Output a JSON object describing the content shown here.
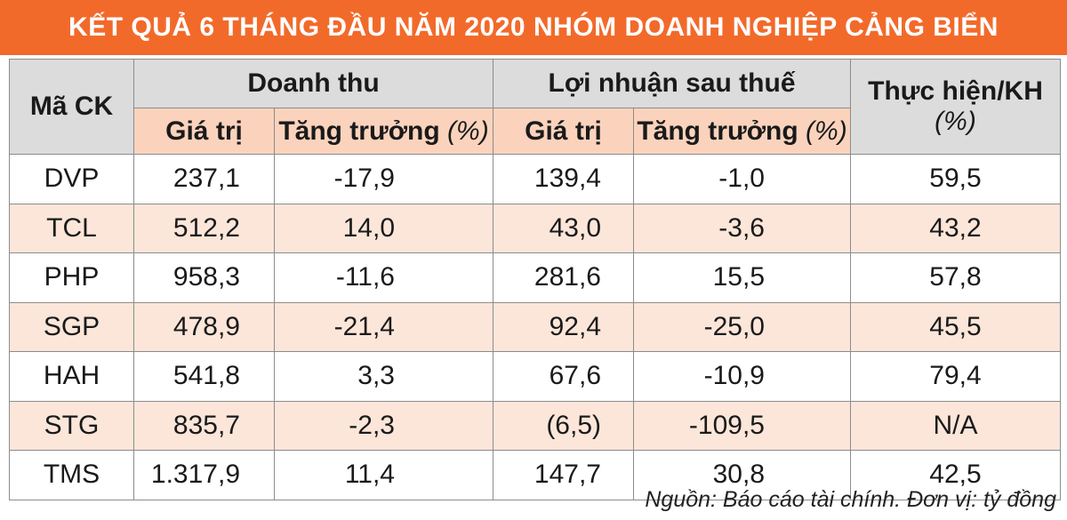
{
  "title": "KẾT QUẢ 6 THÁNG ĐẦU NĂM 2020 NHÓM DOANH NGHIỆP CẢNG BIỂN",
  "headers": {
    "code": "Mã CK",
    "revenue_group": "Doanh thu",
    "profit_group": "Lợi nhuận sau thuế",
    "plan": "Thực hiện/KH",
    "plan_unit": "(%)",
    "value": "Giá trị",
    "growth": "Tăng trưởng",
    "growth_unit": "(%)"
  },
  "colors": {
    "title_bg": "#f26a2a",
    "header_gray": "#dcdcdc",
    "header_peach": "#fbd3bd",
    "alt_row": "#fce6da",
    "border": "#8c8c8c"
  },
  "chart_data": {
    "type": "table",
    "title": "KẾT QUẢ 6 THÁNG ĐẦU NĂM 2020 NHÓM DOANH NGHIỆP CẢNG BIỂN",
    "columns": [
      "Mã CK",
      "Doanh thu - Giá trị",
      "Doanh thu - Tăng trưởng (%)",
      "Lợi nhuận sau thuế - Giá trị",
      "Lợi nhuận sau thuế - Tăng trưởng (%)",
      "Thực hiện/KH (%)"
    ],
    "rows": [
      {
        "code": "DVP",
        "revenue": "237,1",
        "revenue_growth": "-17,9",
        "profit": "139,4",
        "profit_growth": "-1,0",
        "plan": "59,5"
      },
      {
        "code": "TCL",
        "revenue": "512,2",
        "revenue_growth": "14,0",
        "profit": "43,0",
        "profit_growth": "-3,6",
        "plan": "43,2"
      },
      {
        "code": "PHP",
        "revenue": "958,3",
        "revenue_growth": "-11,6",
        "profit": "281,6",
        "profit_growth": "15,5",
        "plan": "57,8"
      },
      {
        "code": "SGP",
        "revenue": "478,9",
        "revenue_growth": "-21,4",
        "profit": "92,4",
        "profit_growth": "-25,0",
        "plan": "45,5"
      },
      {
        "code": "HAH",
        "revenue": "541,8",
        "revenue_growth": "3,3",
        "profit": "67,6",
        "profit_growth": "-10,9",
        "plan": "79,4"
      },
      {
        "code": "STG",
        "revenue": "835,7",
        "revenue_growth": "-2,3",
        "profit": "(6,5)",
        "profit_growth": "-109,5",
        "plan": "N/A"
      },
      {
        "code": "TMS",
        "revenue": "1.317,9",
        "revenue_growth": "11,4",
        "profit": "147,7",
        "profit_growth": "30,8",
        "plan": "42,5"
      }
    ]
  },
  "footnote": "Nguồn: Báo cáo tài chính. Đơn vị: tỷ đồng"
}
